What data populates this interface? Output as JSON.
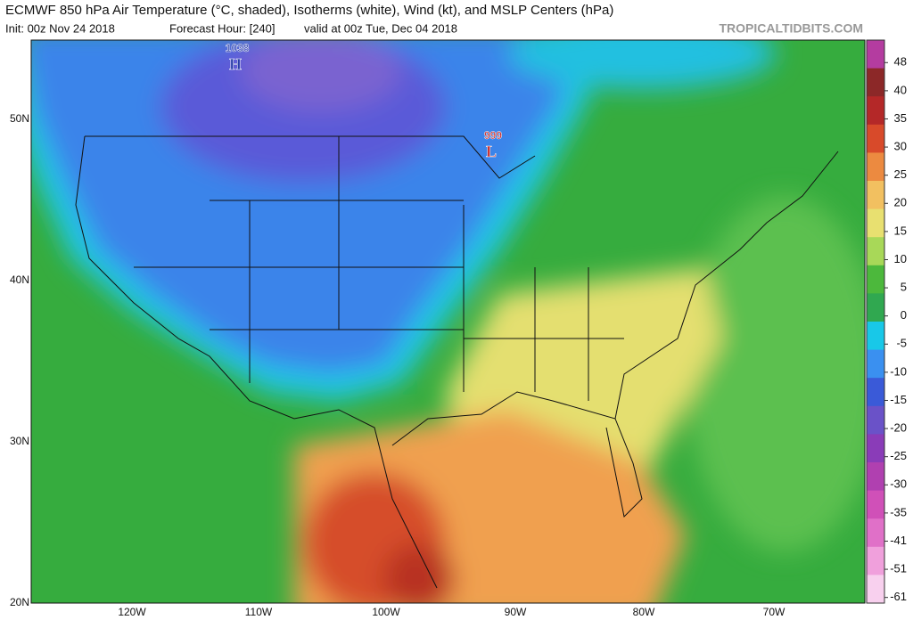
{
  "header": {
    "title": "ECMWF 850 hPa Air Temperature (°C, shaded), Isotherms (white), Wind (kt), and MSLP Centers (hPa)",
    "subtitle": [
      "Init: 00z Nov 24 2018",
      "Forecast Hour: [240]",
      "valid at 00z Tue, Dec 04 2018"
    ],
    "source": "TROPICALTIDBITS.COM"
  },
  "map": {
    "lat_labels": [
      "50N",
      "40N",
      "30N",
      "20N"
    ],
    "lon_labels": [
      "120W",
      "110W",
      "100W",
      "90W",
      "80W",
      "70W"
    ],
    "pressure_centers": [
      {
        "value": 1038,
        "type": "H"
      },
      {
        "value": 999,
        "type": "L"
      }
    ]
  },
  "colorbar": {
    "ticks": [
      48,
      40,
      35,
      30,
      25,
      20,
      15,
      10,
      5,
      0,
      -5,
      -10,
      -15,
      -20,
      -25,
      -30,
      -35,
      -41,
      -51,
      -61
    ],
    "colors": [
      "#b43ca0",
      "#8c2828",
      "#b42828",
      "#d84a2a",
      "#ec8a40",
      "#f2c060",
      "#e8e070",
      "#a8d858",
      "#4cb83c",
      "#30a850",
      "#18c8e8",
      "#3a90f0",
      "#3a5ad8",
      "#6a52c8",
      "#8a3cb8",
      "#b040b0",
      "#d050b8",
      "#e070c8",
      "#f0a0dc",
      "#f8d0ee"
    ]
  }
}
